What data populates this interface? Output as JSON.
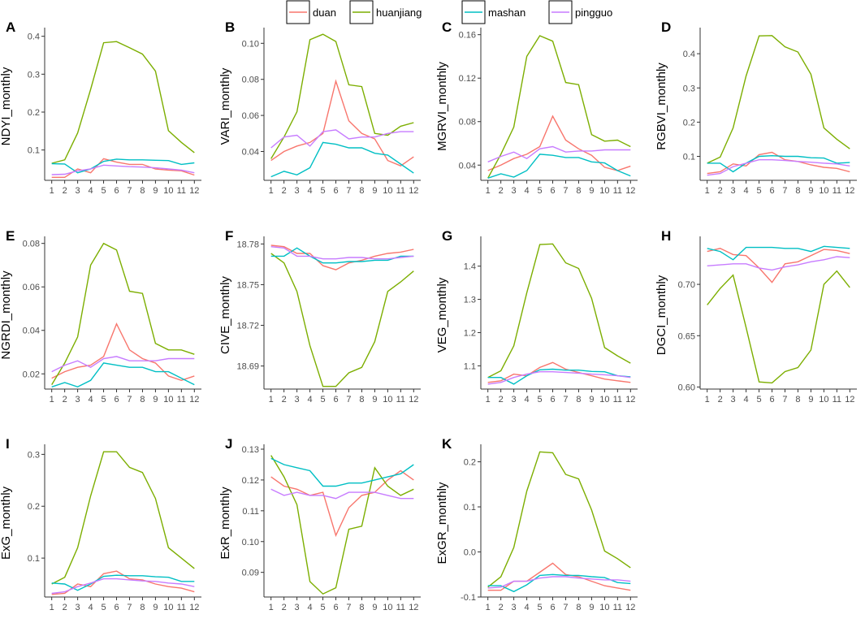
{
  "legend": [
    {
      "name": "duan",
      "color": "#F8766D"
    },
    {
      "name": "huanjiang",
      "color": "#7CAE00"
    },
    {
      "name": "mashan",
      "color": "#00BFC4"
    },
    {
      "name": "pingguo",
      "color": "#C77CFF"
    }
  ],
  "chart_data": [
    {
      "type": "line",
      "letter": "A",
      "ylabel": "NDYI_monthly",
      "x": [
        1,
        2,
        3,
        4,
        5,
        6,
        7,
        8,
        9,
        10,
        11,
        12
      ],
      "xlim": [
        1,
        12
      ],
      "ylim": [
        0.02,
        0.41
      ],
      "yticks": [
        0.1,
        0.2,
        0.3,
        0.4
      ],
      "ytick_labels": [
        "0.1",
        "0.2",
        "0.3",
        "0.4"
      ],
      "series": [
        {
          "name": "duan",
          "values": [
            0.028,
            0.028,
            0.05,
            0.04,
            0.077,
            0.068,
            0.062,
            0.062,
            0.05,
            0.047,
            0.045,
            0.034
          ]
        },
        {
          "name": "huanjiang",
          "values": [
            0.065,
            0.074,
            0.145,
            0.26,
            0.383,
            0.386,
            0.37,
            0.353,
            0.308,
            0.151,
            0.12,
            0.093
          ]
        },
        {
          "name": "mashan",
          "values": [
            0.064,
            0.063,
            0.04,
            0.05,
            0.07,
            0.076,
            0.074,
            0.074,
            0.073,
            0.072,
            0.062,
            0.066
          ]
        },
        {
          "name": "pingguo",
          "values": [
            0.035,
            0.036,
            0.045,
            0.05,
            0.06,
            0.058,
            0.056,
            0.055,
            0.053,
            0.05,
            0.047,
            0.04
          ]
        }
      ]
    },
    {
      "type": "line",
      "letter": "B",
      "ylabel": "VARI_monthly",
      "x": [
        1,
        2,
        3,
        4,
        5,
        6,
        7,
        8,
        9,
        10,
        11,
        12
      ],
      "xlim": [
        1,
        12
      ],
      "ylim": [
        0.024,
        0.106
      ],
      "yticks": [
        0.04,
        0.06,
        0.08,
        0.1
      ],
      "ytick_labels": [
        "0.04",
        "0.06",
        "0.08",
        "0.10"
      ],
      "series": [
        {
          "name": "duan",
          "values": [
            0.035,
            0.04,
            0.043,
            0.045,
            0.05,
            0.079,
            0.057,
            0.05,
            0.047,
            0.035,
            0.032,
            0.037
          ]
        },
        {
          "name": "huanjiang",
          "values": [
            0.036,
            0.048,
            0.062,
            0.102,
            0.105,
            0.101,
            0.077,
            0.076,
            0.05,
            0.049,
            0.054,
            0.056
          ]
        },
        {
          "name": "mashan",
          "values": [
            0.026,
            0.029,
            0.027,
            0.031,
            0.045,
            0.044,
            0.042,
            0.042,
            0.039,
            0.038,
            0.033,
            0.028
          ]
        },
        {
          "name": "pingguo",
          "values": [
            0.042,
            0.048,
            0.049,
            0.043,
            0.051,
            0.052,
            0.047,
            0.048,
            0.048,
            0.05,
            0.051,
            0.051
          ]
        }
      ]
    },
    {
      "type": "line",
      "letter": "C",
      "ylabel": "MGRVI_monthly",
      "x": [
        1,
        2,
        3,
        4,
        5,
        6,
        7,
        8,
        9,
        10,
        11,
        12
      ],
      "xlim": [
        1,
        12
      ],
      "ylim": [
        0.026,
        0.162
      ],
      "yticks": [
        0.04,
        0.08,
        0.12,
        0.16
      ],
      "ytick_labels": [
        "0.04",
        "0.08",
        "0.12",
        "0.16"
      ],
      "series": [
        {
          "name": "duan",
          "values": [
            0.035,
            0.04,
            0.046,
            0.05,
            0.057,
            0.085,
            0.063,
            0.055,
            0.049,
            0.038,
            0.035,
            0.039
          ]
        },
        {
          "name": "huanjiang",
          "values": [
            0.028,
            0.05,
            0.075,
            0.14,
            0.159,
            0.154,
            0.116,
            0.114,
            0.068,
            0.062,
            0.063,
            0.057
          ]
        },
        {
          "name": "mashan",
          "values": [
            0.028,
            0.032,
            0.029,
            0.035,
            0.05,
            0.049,
            0.047,
            0.047,
            0.043,
            0.042,
            0.035,
            0.03
          ]
        },
        {
          "name": "pingguo",
          "values": [
            0.043,
            0.048,
            0.052,
            0.046,
            0.055,
            0.057,
            0.052,
            0.053,
            0.053,
            0.054,
            0.054,
            0.054
          ]
        }
      ]
    },
    {
      "type": "line",
      "letter": "D",
      "ylabel": "RGBVI_monthly",
      "x": [
        1,
        2,
        3,
        4,
        5,
        6,
        7,
        8,
        9,
        10,
        11,
        12
      ],
      "xlim": [
        1,
        12
      ],
      "ylim": [
        0.03,
        0.462
      ],
      "yticks": [
        0.1,
        0.2,
        0.3,
        0.4
      ],
      "ytick_labels": [
        "0.1",
        "0.2",
        "0.3",
        "0.4"
      ],
      "series": [
        {
          "name": "duan",
          "values": [
            0.05,
            0.055,
            0.078,
            0.072,
            0.105,
            0.112,
            0.09,
            0.085,
            0.075,
            0.068,
            0.065,
            0.055
          ]
        },
        {
          "name": "huanjiang",
          "values": [
            0.08,
            0.098,
            0.183,
            0.335,
            0.452,
            0.453,
            0.42,
            0.405,
            0.34,
            0.183,
            0.15,
            0.122
          ]
        },
        {
          "name": "mashan",
          "values": [
            0.08,
            0.08,
            0.055,
            0.08,
            0.1,
            0.102,
            0.1,
            0.1,
            0.096,
            0.095,
            0.08,
            0.082
          ]
        },
        {
          "name": "pingguo",
          "values": [
            0.045,
            0.05,
            0.07,
            0.08,
            0.09,
            0.09,
            0.088,
            0.085,
            0.083,
            0.08,
            0.078,
            0.072
          ]
        }
      ]
    },
    {
      "type": "line",
      "letter": "E",
      "ylabel": "NGRDI_monthly",
      "x": [
        1,
        2,
        3,
        4,
        5,
        6,
        7,
        8,
        9,
        10,
        11,
        12
      ],
      "xlim": [
        1,
        12
      ],
      "ylim": [
        0.013,
        0.081
      ],
      "yticks": [
        0.02,
        0.04,
        0.06,
        0.08
      ],
      "ytick_labels": [
        "0.02",
        "0.04",
        "0.06",
        "0.08"
      ],
      "series": [
        {
          "name": "duan",
          "values": [
            0.018,
            0.021,
            0.023,
            0.024,
            0.028,
            0.043,
            0.031,
            0.027,
            0.025,
            0.019,
            0.017,
            0.019
          ]
        },
        {
          "name": "huanjiang",
          "values": [
            0.015,
            0.025,
            0.037,
            0.07,
            0.08,
            0.077,
            0.058,
            0.057,
            0.034,
            0.031,
            0.031,
            0.029
          ]
        },
        {
          "name": "mashan",
          "values": [
            0.014,
            0.016,
            0.014,
            0.017,
            0.025,
            0.024,
            0.023,
            0.023,
            0.021,
            0.021,
            0.018,
            0.015
          ]
        },
        {
          "name": "pingguo",
          "values": [
            0.021,
            0.024,
            0.026,
            0.023,
            0.027,
            0.028,
            0.026,
            0.026,
            0.026,
            0.027,
            0.027,
            0.027
          ]
        }
      ]
    },
    {
      "type": "line",
      "letter": "F",
      "ylabel": "CIVE_monthly",
      "x": [
        1,
        2,
        3,
        4,
        5,
        6,
        7,
        8,
        9,
        10,
        11,
        12
      ],
      "xlim": [
        1,
        12
      ],
      "ylim": [
        18.673,
        18.782
      ],
      "yticks": [
        18.69,
        18.72,
        18.75,
        18.78
      ],
      "ytick_labels": [
        "18.69",
        "18.72",
        "18.75",
        "18.78"
      ],
      "series": [
        {
          "name": "duan",
          "values": [
            18.779,
            18.778,
            18.773,
            18.773,
            18.764,
            18.761,
            18.766,
            18.768,
            18.771,
            18.773,
            18.774,
            18.776
          ]
        },
        {
          "name": "huanjiang",
          "values": [
            18.773,
            18.766,
            18.745,
            18.705,
            18.675,
            18.675,
            18.685,
            18.689,
            18.708,
            18.745,
            18.752,
            18.76
          ]
        },
        {
          "name": "mashan",
          "values": [
            18.771,
            18.771,
            18.777,
            18.771,
            18.766,
            18.766,
            18.767,
            18.767,
            18.768,
            18.768,
            18.771,
            18.771
          ]
        },
        {
          "name": "pingguo",
          "values": [
            18.778,
            18.777,
            18.771,
            18.771,
            18.769,
            18.769,
            18.77,
            18.77,
            18.769,
            18.769,
            18.77,
            18.771
          ]
        }
      ]
    },
    {
      "type": "line",
      "letter": "G",
      "ylabel": "VEG_monthly",
      "x": [
        1,
        2,
        3,
        4,
        5,
        6,
        7,
        8,
        9,
        10,
        11,
        12
      ],
      "xlim": [
        1,
        12
      ],
      "ylim": [
        1.03,
        1.475
      ],
      "yticks": [
        1.1,
        1.2,
        1.3,
        1.4
      ],
      "ytick_labels": [
        "1.1",
        "1.2",
        "1.3",
        "1.4"
      ],
      "series": [
        {
          "name": "duan",
          "values": [
            1.05,
            1.055,
            1.075,
            1.07,
            1.095,
            1.11,
            1.09,
            1.08,
            1.07,
            1.06,
            1.055,
            1.05
          ]
        },
        {
          "name": "huanjiang",
          "values": [
            1.065,
            1.085,
            1.16,
            1.32,
            1.465,
            1.467,
            1.41,
            1.393,
            1.303,
            1.155,
            1.13,
            1.108
          ]
        },
        {
          "name": "mashan",
          "values": [
            1.065,
            1.065,
            1.045,
            1.07,
            1.088,
            1.09,
            1.087,
            1.087,
            1.083,
            1.082,
            1.07,
            1.067
          ]
        },
        {
          "name": "pingguo",
          "values": [
            1.045,
            1.05,
            1.065,
            1.075,
            1.082,
            1.082,
            1.08,
            1.078,
            1.075,
            1.073,
            1.07,
            1.065
          ]
        }
      ]
    },
    {
      "type": "line",
      "letter": "H",
      "ylabel": "DGCI_monthly",
      "x": [
        1,
        2,
        3,
        4,
        5,
        6,
        7,
        8,
        9,
        10,
        11,
        12
      ],
      "xlim": [
        1,
        12
      ],
      "ylim": [
        0.598,
        0.742
      ],
      "yticks": [
        0.6,
        0.65,
        0.7
      ],
      "ytick_labels": [
        "0.60",
        "0.65",
        "0.70"
      ],
      "series": [
        {
          "name": "duan",
          "values": [
            0.732,
            0.735,
            0.729,
            0.728,
            0.716,
            0.702,
            0.72,
            0.722,
            0.728,
            0.734,
            0.733,
            0.73
          ]
        },
        {
          "name": "huanjiang",
          "values": [
            0.68,
            0.696,
            0.709,
            0.658,
            0.605,
            0.604,
            0.615,
            0.619,
            0.636,
            0.7,
            0.713,
            0.697
          ]
        },
        {
          "name": "mashan",
          "values": [
            0.735,
            0.732,
            0.724,
            0.736,
            0.736,
            0.736,
            0.735,
            0.735,
            0.732,
            0.737,
            0.736,
            0.735
          ]
        },
        {
          "name": "pingguo",
          "values": [
            0.718,
            0.719,
            0.72,
            0.72,
            0.716,
            0.714,
            0.717,
            0.719,
            0.722,
            0.724,
            0.727,
            0.726
          ]
        }
      ]
    },
    {
      "type": "line",
      "letter": "I",
      "ylabel": "ExG_monthly",
      "x": [
        1,
        2,
        3,
        4,
        5,
        6,
        7,
        8,
        9,
        10,
        11,
        12
      ],
      "xlim": [
        1,
        12
      ],
      "ylim": [
        0.025,
        0.31
      ],
      "yticks": [
        0.1,
        0.2,
        0.3
      ],
      "ytick_labels": [
        "0.1",
        "0.2",
        "0.3"
      ],
      "series": [
        {
          "name": "duan",
          "values": [
            0.03,
            0.032,
            0.05,
            0.045,
            0.07,
            0.075,
            0.06,
            0.058,
            0.05,
            0.045,
            0.042,
            0.035
          ]
        },
        {
          "name": "huanjiang",
          "values": [
            0.05,
            0.063,
            0.12,
            0.22,
            0.305,
            0.305,
            0.275,
            0.265,
            0.215,
            0.12,
            0.1,
            0.08
          ]
        },
        {
          "name": "mashan",
          "values": [
            0.052,
            0.05,
            0.038,
            0.05,
            0.065,
            0.067,
            0.066,
            0.066,
            0.064,
            0.063,
            0.055,
            0.055
          ]
        },
        {
          "name": "pingguo",
          "values": [
            0.032,
            0.035,
            0.045,
            0.052,
            0.06,
            0.06,
            0.058,
            0.056,
            0.055,
            0.052,
            0.05,
            0.045
          ]
        }
      ]
    },
    {
      "type": "line",
      "letter": "J",
      "ylabel": "ExR_monthly",
      "x": [
        1,
        2,
        3,
        4,
        5,
        6,
        7,
        8,
        9,
        10,
        11,
        12
      ],
      "xlim": [
        1,
        12
      ],
      "ylim": [
        0.082,
        0.13
      ],
      "yticks": [
        0.09,
        0.1,
        0.11,
        0.12,
        0.13
      ],
      "ytick_labels": [
        "0.09",
        "0.10",
        "0.11",
        "0.12",
        "0.13"
      ],
      "series": [
        {
          "name": "duan",
          "values": [
            0.121,
            0.118,
            0.117,
            0.115,
            0.116,
            0.102,
            0.111,
            0.115,
            0.116,
            0.12,
            0.123,
            0.12
          ]
        },
        {
          "name": "huanjiang",
          "values": [
            0.128,
            0.121,
            0.112,
            0.087,
            0.083,
            0.085,
            0.104,
            0.105,
            0.124,
            0.118,
            0.115,
            0.117
          ]
        },
        {
          "name": "mashan",
          "values": [
            0.127,
            0.125,
            0.124,
            0.123,
            0.118,
            0.118,
            0.119,
            0.119,
            0.12,
            0.121,
            0.122,
            0.125
          ]
        },
        {
          "name": "pingguo",
          "values": [
            0.117,
            0.115,
            0.116,
            0.115,
            0.115,
            0.114,
            0.116,
            0.116,
            0.116,
            0.115,
            0.114,
            0.114
          ]
        }
      ]
    },
    {
      "type": "line",
      "letter": "K",
      "ylabel": "ExGR_monthly",
      "x": [
        1,
        2,
        3,
        4,
        5,
        6,
        7,
        8,
        9,
        10,
        11,
        12
      ],
      "xlim": [
        1,
        12
      ],
      "ylim": [
        -0.1,
        0.228
      ],
      "yticks": [
        -0.1,
        0.0,
        0.1,
        0.2
      ],
      "ytick_labels": [
        "-0.1",
        "0.0",
        "0.1",
        "0.2"
      ],
      "series": [
        {
          "name": "duan",
          "values": [
            -0.085,
            -0.085,
            -0.065,
            -0.065,
            -0.045,
            -0.025,
            -0.05,
            -0.055,
            -0.065,
            -0.075,
            -0.08,
            -0.085
          ]
        },
        {
          "name": "huanjiang",
          "values": [
            -0.078,
            -0.055,
            0.01,
            0.135,
            0.222,
            0.22,
            0.172,
            0.162,
            0.093,
            0.002,
            -0.015,
            -0.035
          ]
        },
        {
          "name": "mashan",
          "values": [
            -0.075,
            -0.075,
            -0.088,
            -0.073,
            -0.052,
            -0.05,
            -0.052,
            -0.052,
            -0.055,
            -0.057,
            -0.068,
            -0.07
          ]
        },
        {
          "name": "pingguo",
          "values": [
            -0.08,
            -0.078,
            -0.065,
            -0.065,
            -0.058,
            -0.055,
            -0.055,
            -0.058,
            -0.06,
            -0.062,
            -0.062,
            -0.065
          ]
        }
      ]
    }
  ]
}
